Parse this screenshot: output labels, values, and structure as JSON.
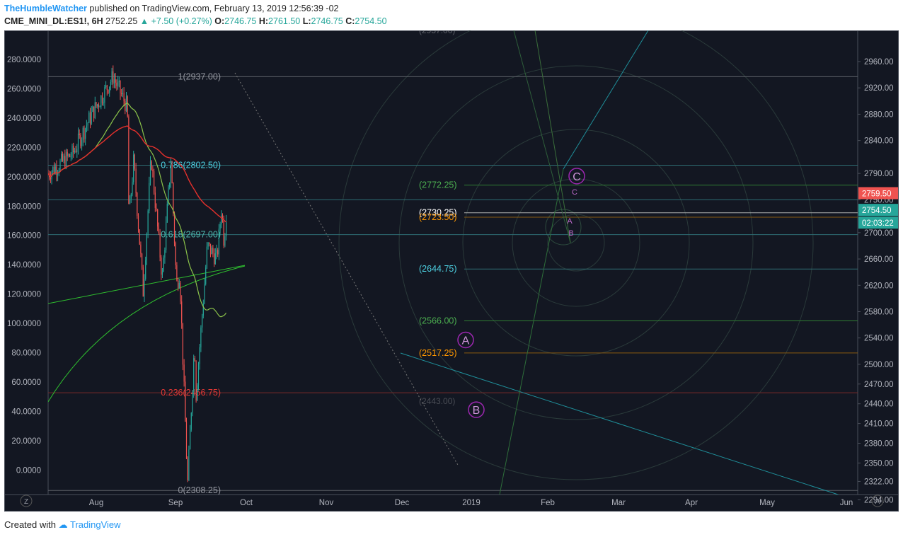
{
  "header": {
    "author": "TheHumbleWatcher",
    "published_text": "published on TradingView.com, February 13, 2019 12:56:39 -02",
    "symbol": "CME_MINI_DL:ES1!, 6H",
    "last": "2752.25",
    "change": "+7.50 (+0.27%)",
    "open_label": "O:",
    "open": "2746.75",
    "high_label": "H:",
    "high": "2761.50",
    "low_label": "L:",
    "low": "2746.75",
    "close_label": "C:",
    "close": "2754.50"
  },
  "footer": {
    "created_with": "Created with",
    "brand": "TradingView"
  },
  "colors": {
    "background": "#131722",
    "border": "#4a4f5a",
    "axis_text": "#b2b5be",
    "up": "#26a69a",
    "down": "#ef5350",
    "ma_slow": "#e5302c",
    "ma_fast": "#8bc34a",
    "fib_line": "#4f5b66",
    "teal": "#00bcd4",
    "price_badge": "#ef5350",
    "close_badge": "#26a69a"
  },
  "chart_data": {
    "type": "candlestick",
    "x_labels": [
      "Aug",
      "Sep",
      "Oct",
      "Nov",
      "Dec",
      "2019",
      "Feb",
      "Mar",
      "Apr",
      "May",
      "Jun"
    ],
    "left_axis": {
      "ticks": [
        "280.0000",
        "260.0000",
        "240.0000",
        "220.0000",
        "200.0000",
        "180.0000",
        "160.0000",
        "140.0000",
        "120.0000",
        "100.0000",
        "80.0000",
        "60.0000",
        "40.0000",
        "20.0000",
        "0.0000"
      ]
    },
    "right_axis": {
      "ticks": [
        "2960.00",
        "2920.00",
        "2880.00",
        "2840.00",
        "2790.00",
        "2750.00",
        "2700.00",
        "2660.00",
        "2620.00",
        "2580.00",
        "2540.00",
        "2500.00",
        "2470.00",
        "2440.00",
        "2410.00",
        "2380.00",
        "2350.00",
        "2322.00",
        "2294.00"
      ]
    },
    "fib_retracement": [
      {
        "label": "1(2937.00)",
        "price": 2937.0,
        "color": "#9598a1"
      },
      {
        "label": "0.786(2802.50)",
        "price": 2802.5,
        "color": "#4dd0e1"
      },
      {
        "label": "0.618(2697.00)",
        "price": 2697.0,
        "color": "#4db6ac"
      },
      {
        "label": "0.236(2456.75)",
        "price": 2456.75,
        "color": "#e53935"
      },
      {
        "label": "0(2308.25)",
        "price": 2308.25,
        "color": "#9598a1"
      }
    ],
    "fib_extension": [
      {
        "label": "(2772.25)",
        "price": 2772.25,
        "color": "#4caf50"
      },
      {
        "label": "(2730.25)",
        "price": 2730.25,
        "color": "#ffffff"
      },
      {
        "label": "(2723.50)",
        "price": 2723.5,
        "color": "#ff9800"
      },
      {
        "label": "(2644.75)",
        "price": 2644.75,
        "color": "#4dd0e1"
      },
      {
        "label": "(2566.00)",
        "price": 2566.0,
        "color": "#4caf50"
      },
      {
        "label": "(2517.25)",
        "price": 2517.25,
        "color": "#ff9800"
      }
    ],
    "wave_labels": [
      "A",
      "B",
      "C",
      "A",
      "B",
      "C"
    ],
    "price_badges": [
      {
        "text": "2759.50",
        "color": "#ef5350"
      },
      {
        "text": "2754.50",
        "color": "#26a69a"
      },
      {
        "text": "02:03:22",
        "color": "#26a69a"
      }
    ],
    "axis_buttons": {
      "left": "Z",
      "right": "A"
    },
    "key_points": [
      {
        "date": "2018-07-01",
        "price": 2790
      },
      {
        "date": "2018-08-01",
        "price": 2820
      },
      {
        "date": "2018-08-25",
        "price": 2880
      },
      {
        "date": "2018-09-21",
        "price": 2937
      },
      {
        "date": "2018-10-09",
        "price": 2890
      },
      {
        "date": "2018-10-11",
        "price": 2720
      },
      {
        "date": "2018-10-17",
        "price": 2810
      },
      {
        "date": "2018-10-29",
        "price": 2610
      },
      {
        "date": "2018-11-08",
        "price": 2815
      },
      {
        "date": "2018-11-22",
        "price": 2630
      },
      {
        "date": "2018-12-03",
        "price": 2810
      },
      {
        "date": "2018-12-10",
        "price": 2620
      },
      {
        "date": "2018-12-14",
        "price": 2640
      },
      {
        "date": "2018-12-24",
        "price": 2317
      },
      {
        "date": "2019-01-02",
        "price": 2540
      },
      {
        "date": "2019-01-03",
        "price": 2443
      },
      {
        "date": "2019-01-18",
        "price": 2680
      },
      {
        "date": "2019-01-30",
        "price": 2660
      },
      {
        "date": "2019-02-05",
        "price": 2740
      },
      {
        "date": "2019-02-08",
        "price": 2686
      },
      {
        "date": "2019-02-12",
        "price": 2752
      }
    ]
  }
}
